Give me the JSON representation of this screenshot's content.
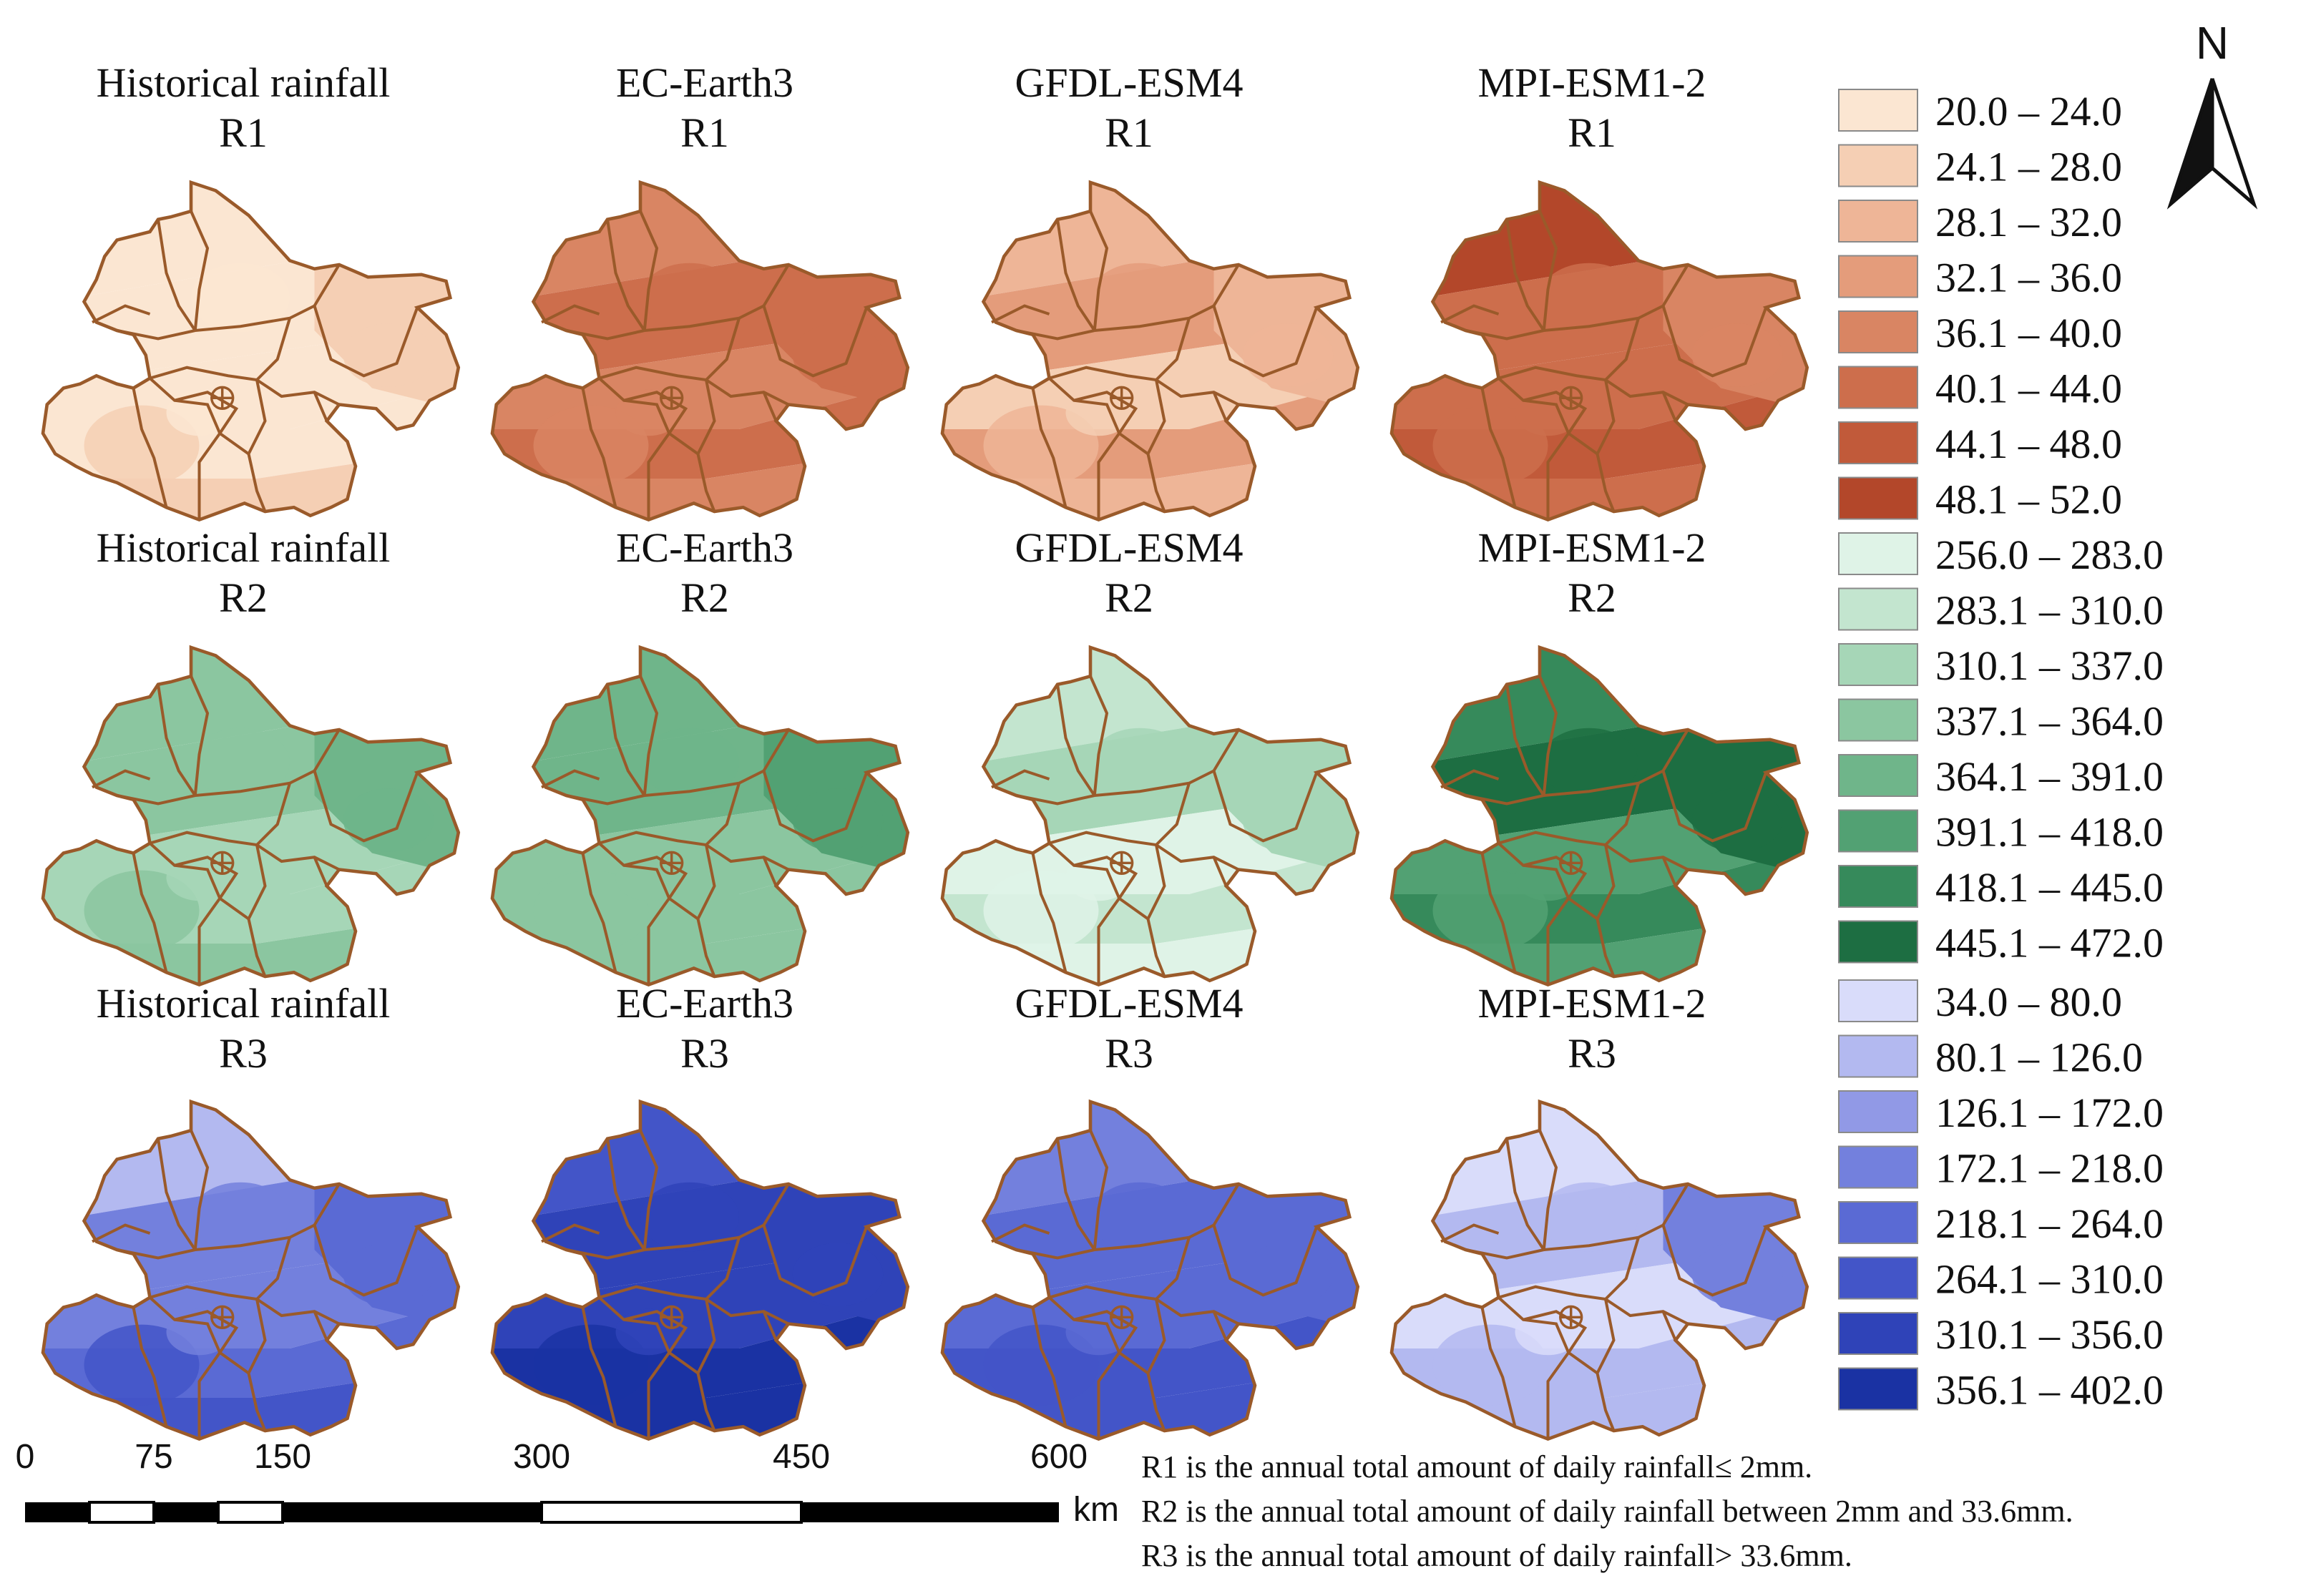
{
  "panels": [
    {
      "source": "Historical rainfall",
      "index": "R1",
      "palette": "r1",
      "levels": [
        0,
        0,
        0,
        0,
        1,
        1
      ]
    },
    {
      "source": "EC-Earth3",
      "index": "R1",
      "palette": "r1",
      "levels": [
        4,
        5,
        4,
        5,
        4,
        5
      ]
    },
    {
      "source": "GFDL-ESM4",
      "index": "R1",
      "palette": "r1",
      "levels": [
        2,
        3,
        1,
        3,
        2,
        2
      ]
    },
    {
      "source": "MPI-ESM1-2",
      "index": "R1",
      "palette": "r1",
      "levels": [
        7,
        5,
        5,
        6,
        5,
        4
      ]
    },
    {
      "source": "Historical rainfall",
      "index": "R2",
      "palette": "r2",
      "levels": [
        3,
        3,
        2,
        2,
        3,
        4
      ]
    },
    {
      "source": "EC-Earth3",
      "index": "R2",
      "palette": "r2",
      "levels": [
        4,
        4,
        3,
        3,
        3,
        5
      ]
    },
    {
      "source": "GFDL-ESM4",
      "index": "R2",
      "palette": "r2",
      "levels": [
        1,
        2,
        0,
        1,
        0,
        2
      ]
    },
    {
      "source": "MPI-ESM1-2",
      "index": "R2",
      "palette": "r2",
      "levels": [
        6,
        7,
        5,
        6,
        5,
        7
      ]
    },
    {
      "source": "Historical rainfall",
      "index": "R3",
      "palette": "r3",
      "levels": [
        1,
        3,
        3,
        4,
        5,
        4
      ]
    },
    {
      "source": "EC-Earth3",
      "index": "R3",
      "palette": "r3",
      "levels": [
        5,
        6,
        6,
        7,
        7,
        6
      ]
    },
    {
      "source": "GFDL-ESM4",
      "index": "R3",
      "palette": "r3",
      "levels": [
        3,
        4,
        4,
        5,
        5,
        4
      ]
    },
    {
      "source": "MPI-ESM1-2",
      "index": "R3",
      "palette": "r3",
      "levels": [
        0,
        1,
        0,
        1,
        1,
        3
      ]
    }
  ],
  "legend": {
    "r1": {
      "colors": [
        "#fbe6d2",
        "#f5cfb4",
        "#eeb597",
        "#e49c7b",
        "#d98563",
        "#cd6e4c",
        "#c15a3a",
        "#b3472a"
      ],
      "labels": [
        "20.0 – 24.0",
        "24.1 – 28.0",
        "28.1 – 32.0",
        "32.1 – 36.0",
        "36.1 – 40.0",
        "40.1 – 44.0",
        "44.1 – 48.0",
        "48.1 – 52.0"
      ]
    },
    "r2": {
      "colors": [
        "#dff3e7",
        "#c3e5cf",
        "#a6d6b7",
        "#8bc6a0",
        "#6fb58a",
        "#52a173",
        "#368a5b",
        "#1d6e42"
      ],
      "labels": [
        "256.0 – 283.0",
        "283.1 – 310.0",
        "310.1 – 337.0",
        "337.1 – 364.0",
        "364.1 – 391.0",
        "391.1 – 418.0",
        "418.1 – 445.0",
        "445.1 – 472.0"
      ]
    },
    "r3": {
      "colors": [
        "#d9dcfa",
        "#b3b9f0",
        "#9199e6",
        "#7380dd",
        "#5a6ad4",
        "#4355c8",
        "#2f43b8",
        "#1a32a3"
      ],
      "labels": [
        "34.0 – 80.0",
        "80.1 – 126.0",
        "126.1 – 172.0",
        "172.1 – 218.0",
        "218.1 – 264.0",
        "264.1 – 310.0",
        "310.1 – 356.0",
        "356.1 – 402.0"
      ]
    }
  },
  "north_label": "N",
  "scale_bar": {
    "ticks": [
      "0",
      "75",
      "150",
      "300",
      "450",
      "600"
    ],
    "unit": "km"
  },
  "notes": [
    "R1 is the annual total amount of daily rainfall≤ 2mm.",
    "R2 is the annual total amount of daily rainfall between 2mm and 33.6mm.",
    "R3 is the annual total amount of daily rainfall> 33.6mm."
  ],
  "boundary_color": "#9a5a2a"
}
